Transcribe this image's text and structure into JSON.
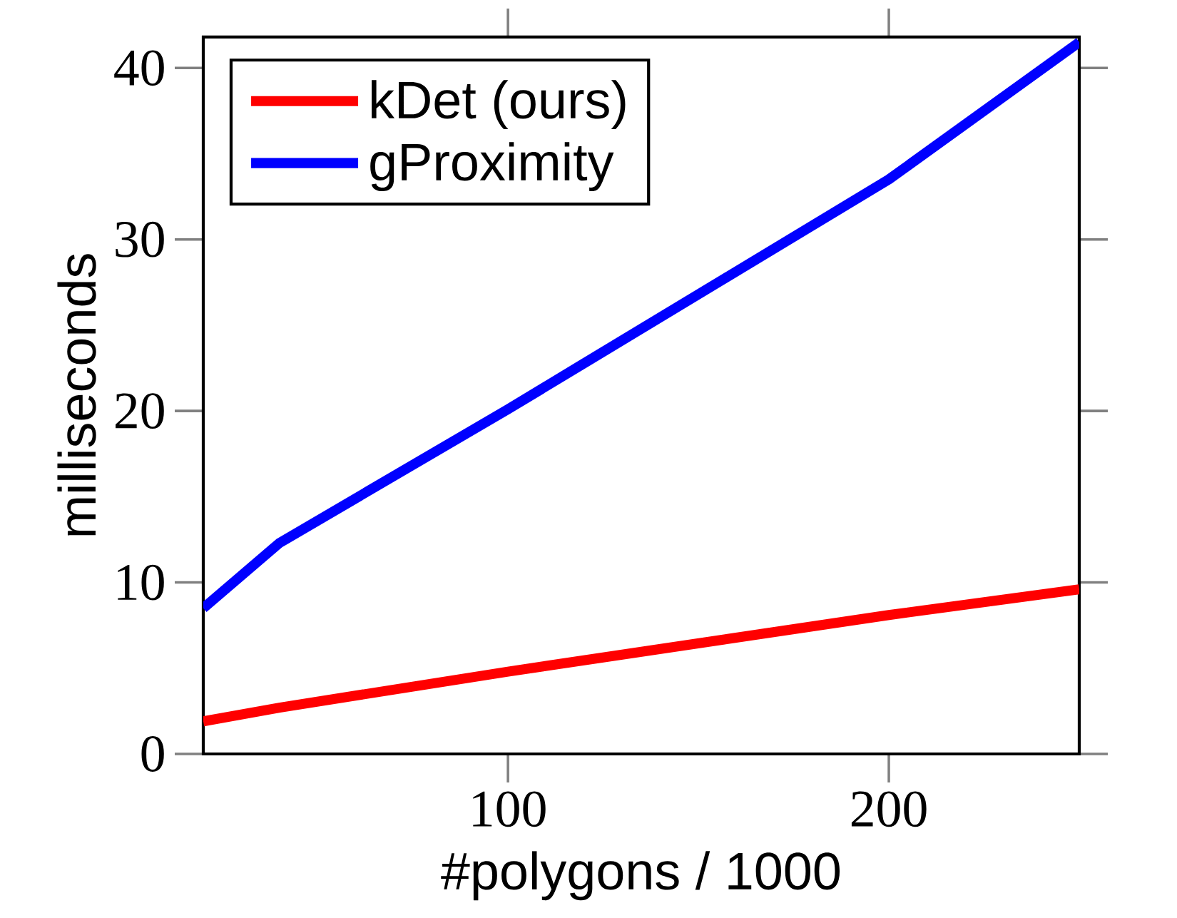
{
  "chart_data": {
    "type": "line",
    "xlabel": "#polygons / 1000",
    "ylabel": "milliseconds",
    "x": [
      20,
      40,
      100,
      200,
      250
    ],
    "series": [
      {
        "name": "kDet (ours)",
        "color": "#ff0000",
        "values": [
          1.9,
          2.7,
          4.8,
          8.1,
          9.6
        ]
      },
      {
        "name": "gProximity",
        "color": "#0000ff",
        "values": [
          8.5,
          12.3,
          20.1,
          33.5,
          41.5
        ]
      }
    ],
    "xlim": [
      20,
      250
    ],
    "ylim": [
      0,
      41.8
    ],
    "xticks": [
      100,
      200
    ],
    "yticks": [
      0,
      10,
      20,
      30,
      40
    ],
    "legend": "top left",
    "grid": false,
    "marker": "none",
    "line_style": "solid"
  }
}
